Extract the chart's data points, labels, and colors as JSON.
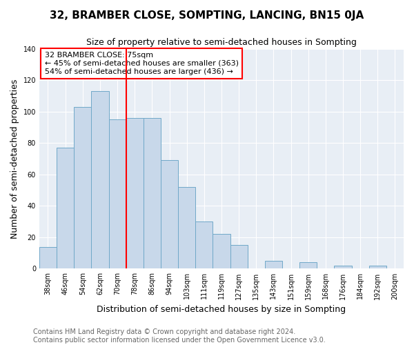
{
  "title": "32, BRAMBER CLOSE, SOMPTING, LANCING, BN15 0JA",
  "subtitle": "Size of property relative to semi-detached houses in Sompting",
  "xlabel": "Distribution of semi-detached houses by size in Sompting",
  "ylabel": "Number of semi-detached properties",
  "categories": [
    "38sqm",
    "46sqm",
    "54sqm",
    "62sqm",
    "70sqm",
    "78sqm",
    "86sqm",
    "94sqm",
    "103sqm",
    "111sqm",
    "119sqm",
    "127sqm",
    "135sqm",
    "143sqm",
    "151sqm",
    "159sqm",
    "168sqm",
    "176sqm",
    "184sqm",
    "192sqm",
    "200sqm"
  ],
  "values": [
    14,
    77,
    103,
    113,
    95,
    96,
    96,
    69,
    52,
    30,
    22,
    15,
    0,
    5,
    0,
    4,
    0,
    2,
    0,
    2,
    0
  ],
  "bar_color": "#c8d8ea",
  "bar_edge_color": "#6fa8c8",
  "annotation_text": "32 BRAMBER CLOSE: 75sqm\n← 45% of semi-detached houses are smaller (363)\n54% of semi-detached houses are larger (436) →",
  "annotation_box_color": "white",
  "annotation_box_edge_color": "red",
  "vline_color": "red",
  "vline_position": 5,
  "footer_text": "Contains HM Land Registry data © Crown copyright and database right 2024.\nContains public sector information licensed under the Open Government Licence v3.0.",
  "ylim": [
    0,
    140
  ],
  "yticks": [
    0,
    20,
    40,
    60,
    80,
    100,
    120,
    140
  ],
  "title_fontsize": 11,
  "subtitle_fontsize": 9,
  "axis_label_fontsize": 9,
  "tick_fontsize": 7,
  "annotation_fontsize": 8,
  "footer_fontsize": 7,
  "bg_color": "#e8eef5"
}
